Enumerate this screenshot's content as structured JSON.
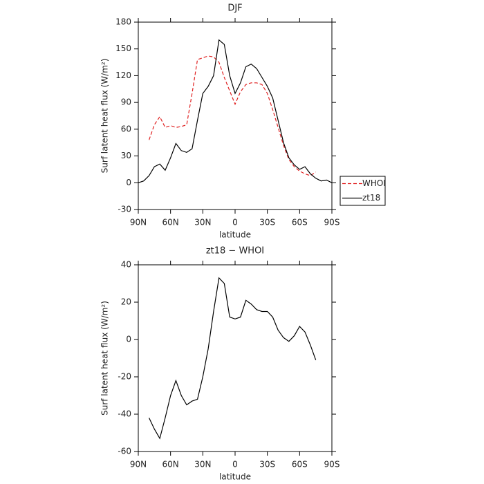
{
  "chart_data": [
    {
      "type": "line",
      "title": "DJF",
      "xlabel": "latitude",
      "ylabel": "Surf latent heat flux (W/m²)",
      "x": [
        90,
        85,
        80,
        75,
        70,
        65,
        60,
        55,
        50,
        45,
        40,
        35,
        30,
        25,
        20,
        15,
        10,
        5,
        0,
        -5,
        -10,
        -15,
        -20,
        -25,
        -30,
        -35,
        -40,
        -45,
        -50,
        -55,
        -60,
        -65,
        -70,
        -75,
        -80,
        -85,
        -90
      ],
      "series": [
        {
          "name": "WHOI",
          "color": "#e02020",
          "linestyle": "dashed",
          "values": [
            null,
            null,
            48,
            65,
            74,
            62,
            64,
            62,
            63,
            65,
            100,
            138,
            140,
            142,
            141,
            135,
            118,
            103,
            88,
            102,
            110,
            112,
            112,
            110,
            100,
            82,
            62,
            42,
            26,
            18,
            13,
            10,
            8,
            12,
            null,
            null,
            null
          ]
        },
        {
          "name": "zt18",
          "color": "#000000",
          "linestyle": "solid",
          "values": [
            0,
            2,
            8,
            18,
            21,
            14,
            28,
            44,
            36,
            34,
            38,
            70,
            100,
            108,
            120,
            160,
            155,
            120,
            100,
            112,
            130,
            133,
            128,
            118,
            108,
            95,
            70,
            45,
            28,
            20,
            15,
            18,
            10,
            5,
            2,
            3,
            0
          ]
        }
      ],
      "xlim": [
        90,
        -90
      ],
      "xticks": [
        {
          "value": 90,
          "label": "90N"
        },
        {
          "value": 60,
          "label": "60N"
        },
        {
          "value": 30,
          "label": "30N"
        },
        0,
        {
          "value": -30,
          "label": "30S"
        },
        {
          "value": -60,
          "label": "60S"
        },
        {
          "value": -90,
          "label": "90S"
        }
      ],
      "ylim": [
        -30,
        180
      ],
      "yticks": [
        -30,
        0,
        30,
        60,
        90,
        120,
        150,
        180
      ],
      "legend": "right"
    },
    {
      "type": "line",
      "title": "zt18 − WHOI",
      "xlabel": "latitude",
      "ylabel": "Surf latent heat flux (W/m²)",
      "x": [
        90,
        85,
        80,
        75,
        70,
        65,
        60,
        55,
        50,
        45,
        40,
        35,
        30,
        25,
        20,
        15,
        10,
        5,
        0,
        -5,
        -10,
        -15,
        -20,
        -25,
        -30,
        -35,
        -40,
        -45,
        -50,
        -55,
        -60,
        -65,
        -70,
        -75,
        -80,
        -85,
        -90
      ],
      "series": [
        {
          "color": "#000000",
          "linestyle": "solid",
          "values": [
            null,
            null,
            -42,
            -48,
            -53,
            -42,
            -30,
            -22,
            -30,
            -35,
            -33,
            -32,
            -20,
            -5,
            15,
            33,
            30,
            12,
            11,
            12,
            21,
            19,
            16,
            15,
            15,
            12,
            5,
            1,
            -1,
            2,
            7,
            4,
            -3,
            -11,
            null,
            null,
            null
          ]
        }
      ],
      "xlim": [
        90,
        -90
      ],
      "xticks": [
        {
          "value": 90,
          "label": "90N"
        },
        {
          "value": 60,
          "label": "60N"
        },
        {
          "value": 30,
          "label": "30N"
        },
        0,
        {
          "value": -30,
          "label": "30S"
        },
        {
          "value": -60,
          "label": "60S"
        },
        {
          "value": -90,
          "label": "90S"
        }
      ],
      "ylim": [
        -60,
        40
      ],
      "yticks": [
        -60,
        -40,
        -20,
        0,
        20,
        40
      ]
    }
  ]
}
